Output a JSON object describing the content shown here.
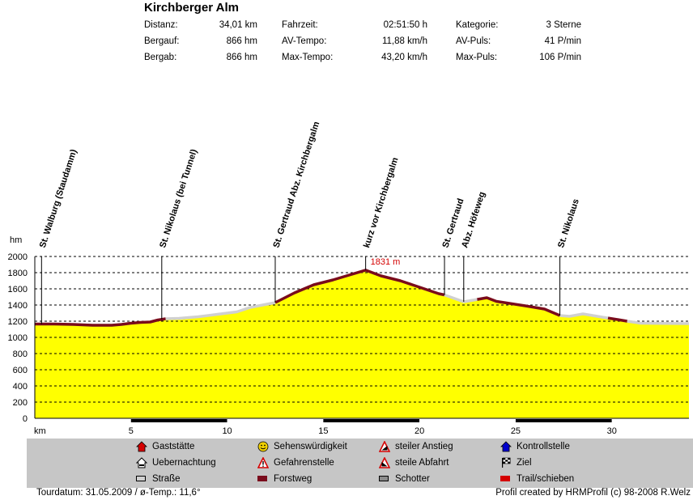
{
  "header": {
    "title": "Kirchberger Alm",
    "stats": [
      {
        "label": "Distanz:",
        "value": "34,01 km"
      },
      {
        "label": "Bergauf:",
        "value": "866 hm"
      },
      {
        "label": "Bergab:",
        "value": "866 hm"
      },
      {
        "label": "Fahrzeit:",
        "value": "02:51:50 h"
      },
      {
        "label": "AV-Tempo:",
        "value": "11,88 km/h"
      },
      {
        "label": "Max-Tempo:",
        "value": "43,20 km/h"
      },
      {
        "label": "Kategorie:",
        "value": "3 Sterne"
      },
      {
        "label": "AV-Puls:",
        "value": "41 P/min"
      },
      {
        "label": "Max-Puls:",
        "value": "106 P/min"
      }
    ]
  },
  "chart_data": {
    "type": "area",
    "ylabel": "hm",
    "xlabel": "km",
    "xlim": [
      0,
      34.01
    ],
    "ylim": [
      0,
      2000
    ],
    "yticks": [
      0,
      200,
      400,
      600,
      800,
      1000,
      1200,
      1400,
      1600,
      1800,
      2000
    ],
    "xticks": [
      5,
      10,
      15,
      20,
      25,
      30
    ],
    "grid": "horizontal-dashed",
    "max_label": "1831 m",
    "max_point": {
      "x": 17.2,
      "y": 1831
    },
    "profile": {
      "x": [
        0,
        1,
        2,
        3,
        4,
        4.5,
        5,
        5.5,
        6,
        6.4,
        6.8,
        7.5,
        8.5,
        9.5,
        10.5,
        11.2,
        12.5,
        13.5,
        14.5,
        15.5,
        16.2,
        17.2,
        18.0,
        19.0,
        20.0,
        21.0,
        21.3,
        22.3,
        23.5,
        24.0,
        25.5,
        26.5,
        27.3,
        27.8,
        28.5,
        29.5,
        30.3,
        30.8,
        31.5,
        34.01
      ],
      "y": [
        1165,
        1165,
        1160,
        1150,
        1150,
        1160,
        1175,
        1185,
        1190,
        1215,
        1230,
        1235,
        1255,
        1285,
        1315,
        1370,
        1430,
        1550,
        1650,
        1710,
        1760,
        1831,
        1760,
        1700,
        1620,
        1540,
        1525,
        1440,
        1490,
        1445,
        1390,
        1350,
        1270,
        1260,
        1290,
        1250,
        1220,
        1200,
        1175,
        1170
      ]
    },
    "surfaces": [
      {
        "from": 0,
        "to": 6.8,
        "type": "Forstweg"
      },
      {
        "from": 6.8,
        "to": 12.5,
        "type": "Straße"
      },
      {
        "from": 12.5,
        "to": 21.3,
        "type": "Forstweg"
      },
      {
        "from": 21.3,
        "to": 23.0,
        "type": "Straße"
      },
      {
        "from": 23.0,
        "to": 27.3,
        "type": "Forstweg"
      },
      {
        "from": 27.3,
        "to": 29.8,
        "type": "Straße"
      },
      {
        "from": 29.8,
        "to": 30.8,
        "type": "Forstweg"
      },
      {
        "from": 30.8,
        "to": 34.01,
        "type": "Straße"
      }
    ],
    "waypoints": [
      {
        "x": 0.35,
        "y": 1165,
        "label": "St. Walburg (Staudamm)"
      },
      {
        "x": 6.6,
        "y": 1225,
        "label": "St. Nikolaus (bei Tunnel)"
      },
      {
        "x": 12.5,
        "y": 1430,
        "label": "St. Gertraud Abz. Kirchbergalm"
      },
      {
        "x": 17.2,
        "y": 1831,
        "label": "kurz vor Kirchbergalm"
      },
      {
        "x": 21.3,
        "y": 1525,
        "label": "St. Gertraud"
      },
      {
        "x": 22.3,
        "y": 1440,
        "label": "Abz. Höfeweg"
      },
      {
        "x": 27.3,
        "y": 1270,
        "label": "St. Nikolaus"
      }
    ],
    "colors": {
      "fill": "#ffff00",
      "forstweg": "#7a0c1c",
      "strasse": "#d0d0d0",
      "grid": "#000000"
    }
  },
  "legend": [
    {
      "label": "Gaststätte",
      "icon": "house-icon",
      "color": "#d40000"
    },
    {
      "label": "Uebernachtung",
      "icon": "bed-house-icon",
      "color": "#000000"
    },
    {
      "label": "Straße",
      "icon": "road-swatch",
      "color": "#d0d0d0"
    },
    {
      "label": "Sehenswürdigkeit",
      "icon": "smiley-icon",
      "color": "#f0d000"
    },
    {
      "label": "Gefahrenstelle",
      "icon": "warning-icon",
      "color": "#d40000"
    },
    {
      "label": "Forstweg",
      "icon": "forest-road-swatch",
      "color": "#7a0c1c"
    },
    {
      "label": "steiler Anstieg",
      "icon": "steep-up-icon",
      "color": "#d40000"
    },
    {
      "label": "steile Abfahrt",
      "icon": "steep-down-icon",
      "color": "#d40000"
    },
    {
      "label": "Schotter",
      "icon": "gravel-swatch",
      "color": "#8c8c8c"
    },
    {
      "label": "Kontrollstelle",
      "icon": "checkpoint-icon",
      "color": "#0000cc"
    },
    {
      "label": "Ziel",
      "icon": "finish-flag-icon",
      "color": "#000000"
    },
    {
      "label": "Trail/schieben",
      "icon": "trail-swatch",
      "color": "#d40000"
    }
  ],
  "footer": {
    "left": "Tourdatum: 31.05.2009  /  ø-Temp.: 11,6°",
    "right": "Profil created by HRMProfil (c) 98-2008 R.Welz"
  }
}
